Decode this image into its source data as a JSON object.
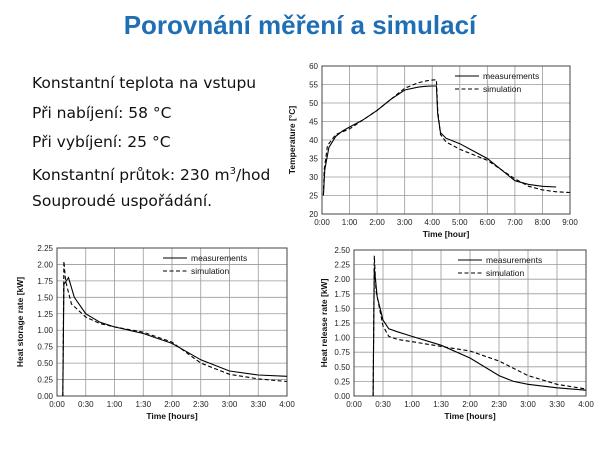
{
  "slide": {
    "title": "Porovnání měření a simulací",
    "bullets": [
      {
        "text": "Konstantní teplota na vstupu"
      },
      {
        "text": "Při nabíjení: 58 °C"
      },
      {
        "text": "Při vybíjení: 25 °C"
      },
      {
        "pre": "Konstantní průtok: 230 m",
        "sup": "3",
        "post": "/hod"
      },
      {
        "text": "Souproudé uspořádání."
      }
    ]
  },
  "legend": {
    "measurements": "measurements",
    "simulation": "simulation"
  },
  "colors": {
    "title": "#1f6fb5",
    "measurements": "#000000",
    "simulation": "#000000"
  },
  "chart_data": [
    {
      "type": "line",
      "xlabel": "Time [hour]",
      "ylabel": "Temperature [°C]",
      "xlim": [
        0,
        9
      ],
      "ylim": [
        20,
        60
      ],
      "xticks": [
        0,
        1,
        2,
        3,
        4,
        5,
        6,
        7,
        8,
        9
      ],
      "xtick_labels": [
        "0:00",
        "1:00",
        "2:00",
        "3:00",
        "4:00",
        "5:00",
        "6:00",
        "7:00",
        "8:00",
        "9:00"
      ],
      "yticks": [
        20,
        25,
        30,
        35,
        40,
        45,
        50,
        55,
        60
      ],
      "ytick_labels": [
        "20",
        "25",
        "30",
        "35",
        "40",
        "45",
        "50",
        "55",
        "60"
      ],
      "grid": true,
      "legend_position": "top-right",
      "series": [
        {
          "name": "measurements",
          "style": "solid",
          "x": [
            0.05,
            0.1,
            0.25,
            0.5,
            0.75,
            1,
            1.5,
            2,
            2.5,
            3,
            3.5,
            3.75,
            4,
            4.15,
            4.2,
            4.3,
            4.5,
            5,
            5.5,
            6,
            6.5,
            7,
            7.5,
            8,
            8.5
          ],
          "y": [
            25,
            32,
            38,
            41,
            42.5,
            43.5,
            45.5,
            48,
            51,
            53.5,
            54.3,
            54.5,
            54.6,
            54.6,
            47,
            42,
            40.5,
            39,
            37,
            35,
            32,
            29,
            28,
            27.5,
            27.3
          ]
        },
        {
          "name": "simulation",
          "style": "dashed",
          "x": [
            0.05,
            0.08,
            0.2,
            0.5,
            1,
            1.5,
            2,
            2.5,
            3,
            3.5,
            3.8,
            4,
            4.15,
            4.2,
            4.3,
            4.5,
            5,
            5.5,
            6,
            6.5,
            7,
            7.5,
            8,
            8.5,
            9
          ],
          "y": [
            25,
            32,
            38.5,
            41.5,
            43,
            45.5,
            48,
            51,
            54,
            55.5,
            56,
            56.2,
            56.3,
            48,
            41.5,
            39.5,
            37.5,
            36,
            34.5,
            32,
            29.5,
            27.5,
            26.5,
            26,
            25.8
          ]
        }
      ]
    },
    {
      "type": "line",
      "xlabel": "Time [hours]",
      "ylabel": "Heat storage rate [kW]",
      "xlim": [
        0,
        4
      ],
      "ylim": [
        0,
        2.25
      ],
      "xticks": [
        0,
        0.5,
        1,
        1.5,
        2,
        2.5,
        3,
        3.5,
        4
      ],
      "xtick_labels": [
        "0:00",
        "0:30",
        "1:00",
        "1:30",
        "2:00",
        "2:30",
        "3:00",
        "3:30",
        "4:00"
      ],
      "yticks": [
        0,
        0.25,
        0.5,
        0.75,
        1,
        1.25,
        1.5,
        1.75,
        2,
        2.25
      ],
      "ytick_labels": [
        "0.00",
        "0.25",
        "0.50",
        "0.75",
        "1.00",
        "1.25",
        "1.50",
        "1.75",
        "2.00",
        "2.25"
      ],
      "grid": true,
      "legend_position": "top-right",
      "series": [
        {
          "name": "measurements",
          "style": "solid",
          "x": [
            0.1,
            0.12,
            0.2,
            0.3,
            0.5,
            0.75,
            1,
            1.5,
            2,
            2.5,
            3,
            3.5,
            4
          ],
          "y": [
            0,
            1.7,
            1.8,
            1.5,
            1.25,
            1.12,
            1.05,
            0.95,
            0.8,
            0.55,
            0.38,
            0.32,
            0.3
          ]
        },
        {
          "name": "simulation",
          "style": "dashed",
          "x": [
            0.1,
            0.12,
            0.15,
            0.25,
            0.5,
            0.75,
            1,
            1.5,
            2,
            2.5,
            3,
            3.5,
            4
          ],
          "y": [
            0,
            2.05,
            1.75,
            1.4,
            1.2,
            1.1,
            1.05,
            0.97,
            0.82,
            0.5,
            0.33,
            0.26,
            0.22
          ]
        }
      ]
    },
    {
      "type": "line",
      "xlabel": "Time [hours]",
      "ylabel": "Heat release rate [kW]",
      "xlim": [
        0,
        4
      ],
      "ylim": [
        0,
        2.5
      ],
      "xticks": [
        0,
        0.5,
        1,
        1.5,
        2,
        2.5,
        3,
        3.5,
        4
      ],
      "xtick_labels": [
        "0:00",
        "0:30",
        "1:00",
        "1:30",
        "2:00",
        "2:30",
        "3:00",
        "3:30",
        "4:00"
      ],
      "yticks": [
        0,
        0.25,
        0.5,
        0.75,
        1,
        1.25,
        1.5,
        1.75,
        2,
        2.25,
        2.5
      ],
      "ytick_labels": [
        "0.00",
        "0.25",
        "0.50",
        "0.75",
        "1.00",
        "1.25",
        "1.50",
        "1.75",
        "2.00",
        "2.25",
        "2.50"
      ],
      "grid": true,
      "legend_position": "top-right",
      "series": [
        {
          "name": "measurements",
          "style": "solid",
          "x": [
            0.33,
            0.35,
            0.4,
            0.5,
            0.6,
            0.75,
            1,
            1.5,
            2,
            2.5,
            2.75,
            3,
            3.5,
            4
          ],
          "y": [
            0,
            2.2,
            1.7,
            1.3,
            1.15,
            1.1,
            1.02,
            0.87,
            0.65,
            0.35,
            0.25,
            0.2,
            0.14,
            0.1
          ]
        },
        {
          "name": "simulation",
          "style": "dashed",
          "x": [
            0.33,
            0.35,
            0.38,
            0.5,
            0.6,
            0.75,
            1,
            1.5,
            2,
            2.5,
            3,
            3.5,
            4
          ],
          "y": [
            0,
            2.4,
            1.8,
            1.2,
            1.02,
            0.97,
            0.93,
            0.85,
            0.77,
            0.6,
            0.35,
            0.2,
            0.12
          ]
        }
      ]
    }
  ]
}
